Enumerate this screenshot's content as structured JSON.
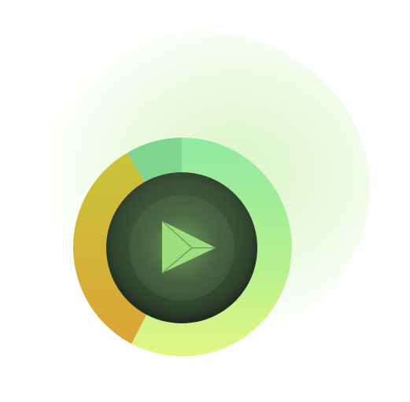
{
  "colors": {
    "segment_top": "#7fd893",
    "segment_right_top": "#8fe9a2",
    "segment_right_bottom": "#dff685",
    "segment_left_top": "#c5c23b",
    "segment_left_bottom": "#d8a537",
    "center_dark": "#1f2b1f",
    "center_mid": "#4b6445",
    "icon_fill": "#a5e17d"
  },
  "icon": {
    "name": "play-icon"
  },
  "segments": [
    {
      "name": "top-left-segment",
      "share": 0.08
    },
    {
      "name": "right-segment",
      "share": 0.55
    },
    {
      "name": "left-segment",
      "share": 0.37
    }
  ]
}
